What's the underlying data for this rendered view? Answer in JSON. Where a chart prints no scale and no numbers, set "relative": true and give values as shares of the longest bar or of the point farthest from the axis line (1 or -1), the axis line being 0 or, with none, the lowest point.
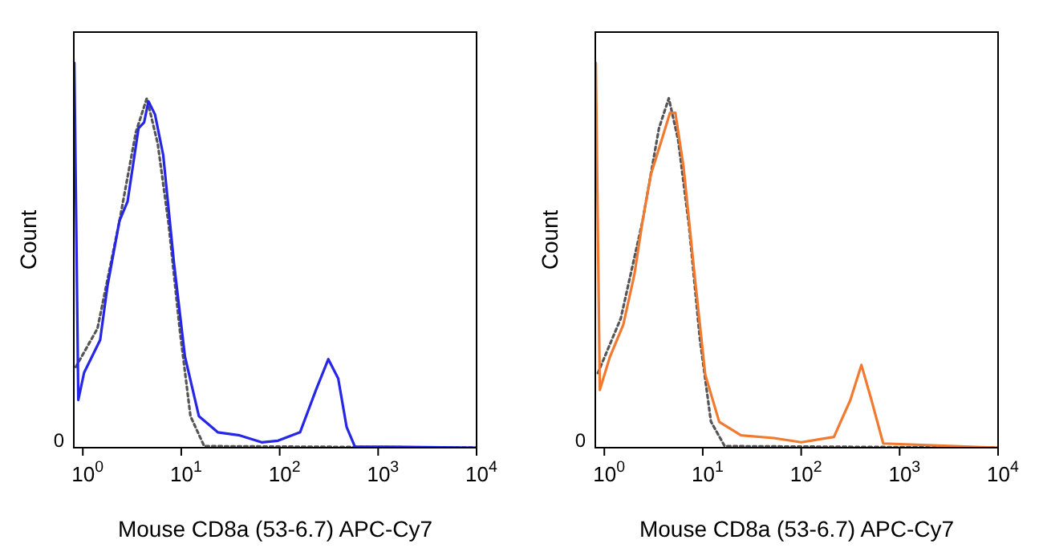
{
  "chart_data": [
    {
      "type": "line",
      "xlabel": "Mouse CD8a (53-6.7) APC-Cy7",
      "ylabel": "Count",
      "relative": true,
      "log": "x",
      "xlim": [
        0.81,
        10000
      ],
      "xticks": [
        {
          "value": 1,
          "label": "10$^{0}$"
        },
        {
          "value": 10,
          "label": "10$^{1}$"
        },
        {
          "value": 100,
          "label": "10$^{2}$"
        },
        {
          "value": 1000,
          "label": "10$^{3}$"
        },
        {
          "value": 10000,
          "label": "10$^{4}$"
        }
      ],
      "annotations": [
        "0"
      ],
      "grid": false,
      "legend": false,
      "marker": "none",
      "series": [
        {
          "color": "#2626e6",
          "line_style": "solid",
          "x": [
            0.82,
            0.9,
            1.03,
            1.5,
            1.78,
            2.36,
            2.85,
            3.68,
            4.19,
            4.64,
            5.41,
            6.56,
            8.46,
            10.9,
            15.1,
            23.5,
            39.3,
            65.6,
            96,
            161,
            236,
            312,
            393,
            478,
            580,
            10000
          ],
          "values": [
            1.0,
            0.124,
            0.195,
            0.28,
            0.42,
            0.59,
            0.64,
            0.83,
            0.845,
            0.9,
            0.866,
            0.76,
            0.477,
            0.237,
            0.082,
            0.04,
            0.032,
            0.014,
            0.018,
            0.04,
            0.153,
            0.23,
            0.18,
            0.054,
            0.003,
            0
          ]
        },
        {
          "color": "#555555",
          "line_style": "dotted",
          "x": [
            0.85,
            1.41,
            2.36,
            3.46,
            4.47,
            5.77,
            7.45,
            9.62,
            12.4,
            17.1,
            10000
          ],
          "values": [
            0.21,
            0.31,
            0.59,
            0.82,
            0.908,
            0.79,
            0.58,
            0.31,
            0.082,
            0.004,
            0
          ]
        }
      ]
    },
    {
      "type": "line",
      "xlabel": "Mouse CD8a (53-6.7) APC-Cy7",
      "ylabel": "Count",
      "relative": true,
      "log": "x",
      "xlim": [
        0.81,
        10000
      ],
      "xticks": [
        {
          "value": 1,
          "label": "10$^{0}$"
        },
        {
          "value": 10,
          "label": "10$^{1}$"
        },
        {
          "value": 100,
          "label": "10$^{2}$"
        },
        {
          "value": 1000,
          "label": "10$^{3}$"
        },
        {
          "value": 10000,
          "label": "10$^{4}$"
        }
      ],
      "annotations": [
        "0"
      ],
      "grid": false,
      "legend": false,
      "marker": "none",
      "series": [
        {
          "color": "#f07a30",
          "line_style": "solid",
          "x": [
            0.82,
            0.9,
            1.14,
            1.56,
            2.02,
            2.45,
            2.97,
            3.83,
            4.64,
            5.27,
            6.38,
            8.25,
            10.6,
            14.7,
            24.5,
            52.7,
            100,
            215,
            316,
            409,
            517,
            681,
            10000
          ],
          "values": [
            1.0,
            0.15,
            0.236,
            0.32,
            0.45,
            0.59,
            0.71,
            0.8,
            0.87,
            0.87,
            0.73,
            0.45,
            0.19,
            0.067,
            0.032,
            0.025,
            0.014,
            0.028,
            0.124,
            0.215,
            0.124,
            0.011,
            0
          ]
        },
        {
          "color": "#555555",
          "line_style": "dotted",
          "x": [
            0.86,
            1.47,
            2.45,
            3.59,
            4.52,
            5.62,
            7.25,
            9.37,
            12.1,
            16.7,
            10000
          ],
          "values": [
            0.194,
            0.336,
            0.59,
            0.83,
            0.908,
            0.8,
            0.576,
            0.28,
            0.068,
            0.004,
            0
          ]
        }
      ]
    }
  ]
}
